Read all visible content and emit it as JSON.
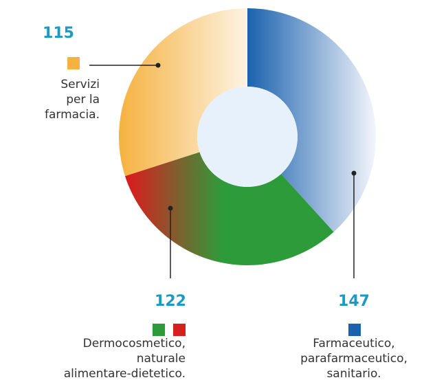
{
  "chart_data": {
    "type": "donut",
    "categories": [
      [
        "Farmaceutico,",
        "parafarmaceutico,",
        "sanitario."
      ],
      [
        "Dermocosmetico,",
        "naturale",
        "alimentare-dietetico."
      ],
      [
        "Servizi",
        "per la",
        "farmacia."
      ]
    ],
    "values": [
      147,
      122,
      115
    ],
    "colors": [
      [
        "#1b62ae"
      ],
      [
        "#2e9b3b",
        "#d42120"
      ],
      [
        "#f5b240"
      ]
    ],
    "start_angle": 0
  }
}
